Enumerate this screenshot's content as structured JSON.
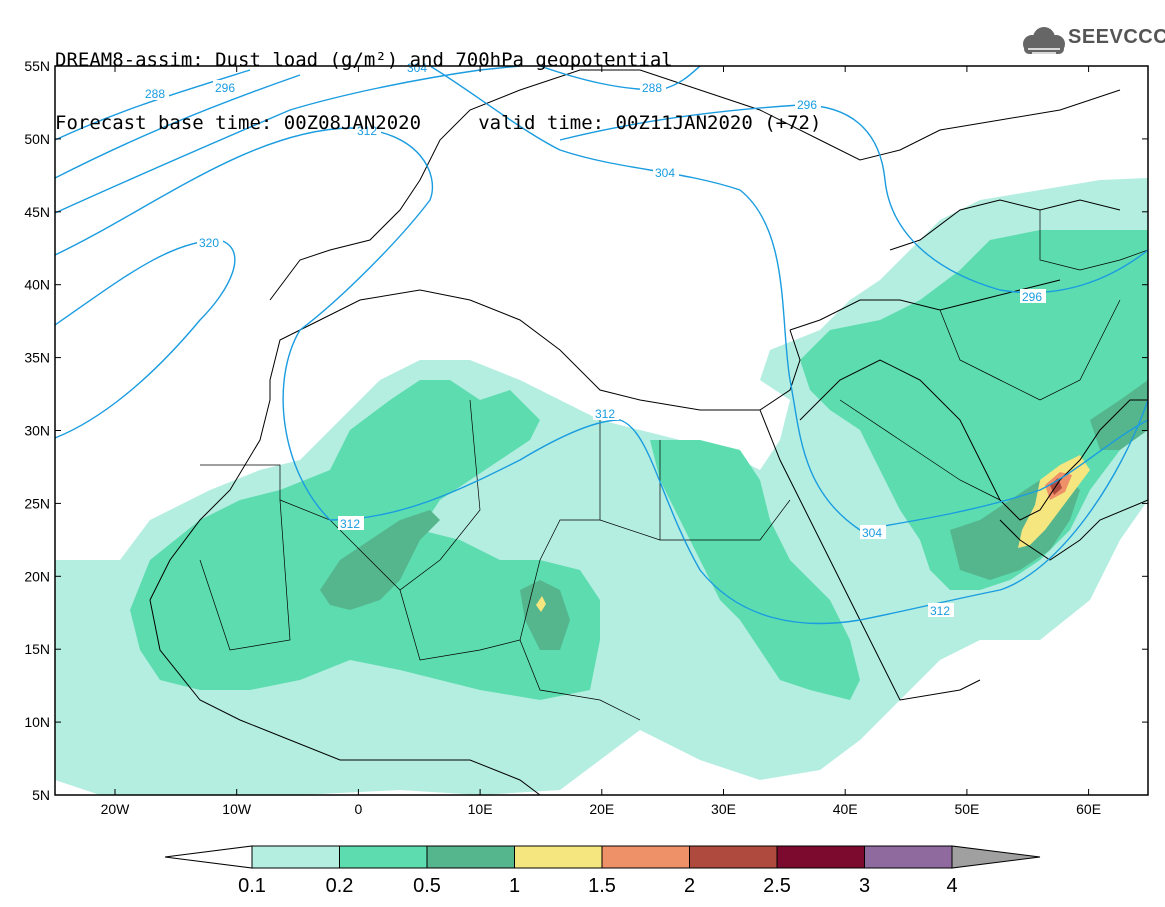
{
  "title": {
    "line1": "DREAM8-assim: Dust load (g/m²) and 700hPa geopotential",
    "line2": "Forecast base time: 00Z08JAN2020     valid time: 00Z11JAN2020 (+72)"
  },
  "logo": {
    "text": "SEEVCCC",
    "icon": "cloud-logo-icon"
  },
  "axes": {
    "lat_labels": [
      "55N",
      "50N",
      "45N",
      "40N",
      "35N",
      "30N",
      "25N",
      "20N",
      "15N",
      "10N",
      "5N"
    ],
    "lon_labels": [
      "20W",
      "10W",
      "0",
      "10E",
      "20E",
      "30E",
      "40E",
      "50E",
      "60E"
    ]
  },
  "contours": [
    {
      "label": "288"
    },
    {
      "label": "296"
    },
    {
      "label": "304"
    },
    {
      "label": "312"
    },
    {
      "label": "320"
    }
  ],
  "colorbar": {
    "labels": [
      "0.1",
      "0.2",
      "0.5",
      "1",
      "1.5",
      "2",
      "2.5",
      "3",
      "4"
    ],
    "colors": [
      "#ffffff",
      "#b4eee0",
      "#5ddcb0",
      "#55b58c",
      "#f5e680",
      "#ee9068",
      "#ae4b3e",
      "#7c0a2e",
      "#8e6a9e",
      "#a0a0a0"
    ]
  }
}
